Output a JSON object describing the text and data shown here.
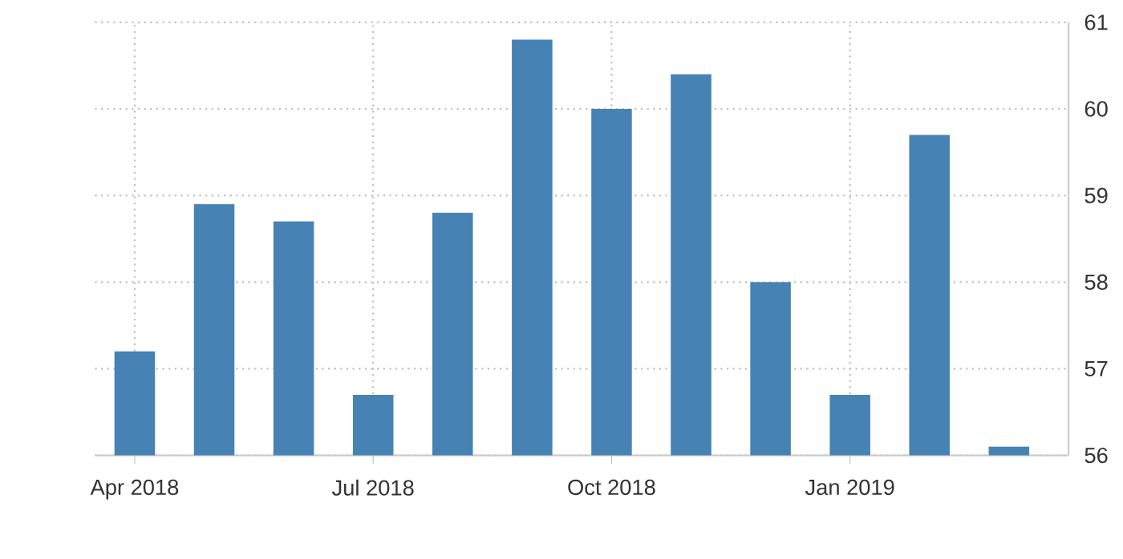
{
  "chart_data": {
    "type": "bar",
    "categories": [
      "Apr 2018",
      null,
      null,
      "Jul 2018",
      null,
      null,
      "Oct 2018",
      null,
      null,
      "Jan 2019",
      null,
      null
    ],
    "values": [
      57.2,
      58.9,
      58.7,
      56.7,
      58.8,
      60.8,
      60.0,
      60.4,
      58.0,
      56.7,
      59.7,
      56.1
    ],
    "color": "#4682b4",
    "ylim": [
      56,
      61
    ],
    "yticks": [
      56,
      57,
      58,
      59,
      60,
      61
    ],
    "grid": true
  }
}
